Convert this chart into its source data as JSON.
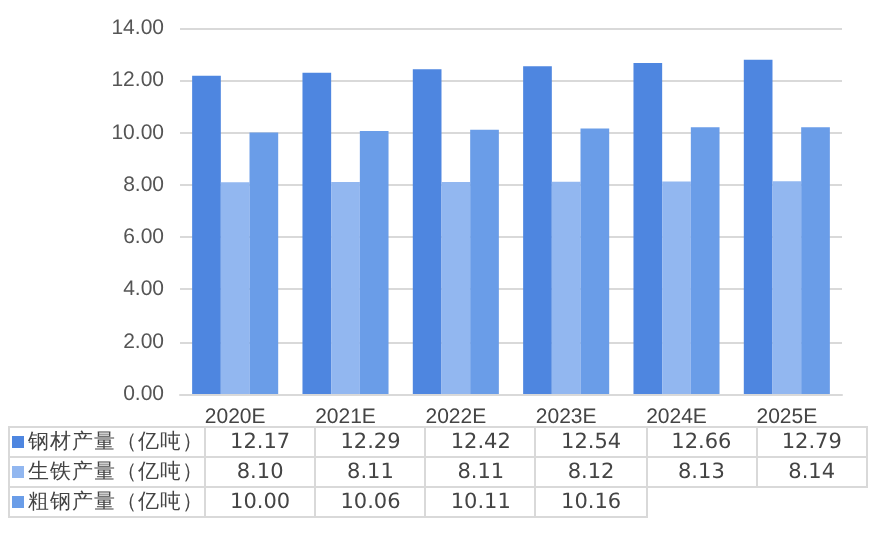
{
  "chart_data": {
    "type": "bar",
    "categories": [
      "2020E",
      "2021E",
      "2022E",
      "2023E",
      "2024E",
      "2025E"
    ],
    "series": [
      {
        "name": "钢材产量（亿吨）",
        "color": "#4e86e0",
        "values": [
          12.17,
          12.29,
          12.42,
          12.54,
          12.66,
          12.79
        ],
        "value_labels": [
          "12.17",
          "12.29",
          "12.42",
          "12.54",
          "12.66",
          "12.79"
        ]
      },
      {
        "name": "生铁产量（亿吨）",
        "color": "#92b7f0",
        "values": [
          8.1,
          8.11,
          8.11,
          8.12,
          8.13,
          8.14
        ],
        "value_labels": [
          "8.10",
          "8.11",
          "8.11",
          "8.12",
          "8.13",
          "8.14"
        ]
      },
      {
        "name": "粗钢产量（亿吨）",
        "color": "#6a9de8",
        "values": [
          10.0,
          10.06,
          10.11,
          10.16,
          10.2,
          10.2
        ],
        "value_labels": [
          "10.00",
          "10.06",
          "10.11",
          "10.16",
          null,
          null
        ]
      }
    ],
    "ylim": [
      0,
      14
    ],
    "yticks": [
      {
        "value": 0,
        "label": "0.00"
      },
      {
        "value": 2,
        "label": "2.00"
      },
      {
        "value": 4,
        "label": "4.00"
      },
      {
        "value": 6,
        "label": "6.00"
      },
      {
        "value": 8,
        "label": "8.00"
      },
      {
        "value": 10,
        "label": "10.00"
      },
      {
        "value": 12,
        "label": "12.00"
      },
      {
        "value": 14,
        "label": "14.00"
      }
    ],
    "grid": "y",
    "legend": "bottom left"
  }
}
